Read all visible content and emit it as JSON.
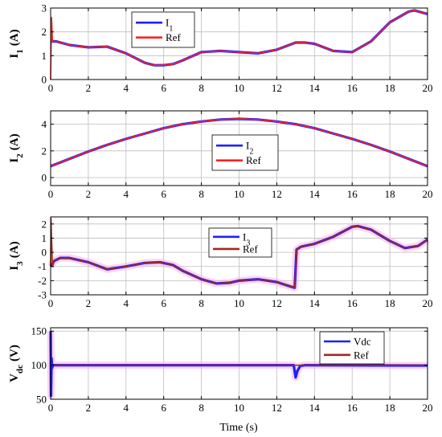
{
  "colors": {
    "I1": "#1f1fff",
    "Ref_red": "#ff2020",
    "I2": "#1f1fff",
    "I3": "#1f1fff",
    "Ref_dark": "#a52a1a",
    "Vdc": "#1f1fff",
    "grid": "#bdbdbd",
    "noise": "#ffb0e8"
  },
  "xlabel": "Time (s)",
  "chart_data": [
    {
      "type": "line",
      "ylabel_main": "I",
      "ylabel_sub": "1",
      "ylabel_unit": "(A)",
      "xlim": [
        0,
        20
      ],
      "ylim": [
        0,
        3
      ],
      "xticks": [
        0,
        2,
        4,
        6,
        8,
        10,
        12,
        14,
        16,
        18,
        20
      ],
      "yticks": [
        0,
        1,
        2,
        3
      ],
      "grid": true,
      "legend": [
        {
          "main": "I",
          "sub": "1",
          "color_key": "I1"
        },
        {
          "main": "Ref",
          "sub": "",
          "color_key": "Ref_red"
        }
      ],
      "series": [
        {
          "name": "I1",
          "color_key": "I1",
          "x": [
            0,
            0.3,
            1,
            2,
            3,
            4,
            5,
            5.5,
            6,
            6.5,
            7,
            8,
            9,
            10,
            11,
            12,
            13,
            13.5,
            14,
            15,
            16,
            17,
            18,
            19,
            19.3,
            20
          ],
          "y": [
            1.6,
            1.6,
            1.45,
            1.35,
            1.38,
            1.1,
            0.7,
            0.6,
            0.6,
            0.65,
            0.8,
            1.15,
            1.2,
            1.15,
            1.1,
            1.25,
            1.55,
            1.55,
            1.5,
            1.2,
            1.15,
            1.6,
            2.4,
            2.85,
            2.9,
            2.75
          ]
        },
        {
          "name": "Ref",
          "color_key": "Ref_red",
          "x": [
            0,
            0.05,
            0.1,
            0.3,
            1,
            2,
            3,
            4,
            5,
            5.5,
            6,
            6.5,
            7,
            8,
            9,
            10,
            11,
            12,
            13,
            13.5,
            14,
            15,
            16,
            17,
            18,
            19,
            19.3,
            20
          ],
          "y": [
            0,
            2.6,
            1.6,
            1.6,
            1.45,
            1.35,
            1.38,
            1.1,
            0.7,
            0.6,
            0.6,
            0.65,
            0.8,
            1.15,
            1.2,
            1.15,
            1.1,
            1.25,
            1.55,
            1.55,
            1.5,
            1.2,
            1.15,
            1.6,
            2.4,
            2.85,
            2.9,
            2.75
          ]
        }
      ]
    },
    {
      "type": "line",
      "ylabel_main": "I",
      "ylabel_sub": "2",
      "ylabel_unit": "(A)",
      "xlim": [
        0,
        20
      ],
      "ylim": [
        -0.6,
        5
      ],
      "xticks": [
        0,
        2,
        4,
        6,
        8,
        10,
        12,
        14,
        16,
        18,
        20
      ],
      "yticks": [
        0,
        2,
        4
      ],
      "grid": true,
      "legend": [
        {
          "main": "I",
          "sub": "2",
          "color_key": "I2"
        },
        {
          "main": "Ref",
          "sub": "",
          "color_key": "Ref_red"
        }
      ],
      "series": [
        {
          "name": "I2",
          "color_key": "I2",
          "x": [
            0,
            1,
            2,
            3,
            4,
            5,
            6,
            7,
            8,
            9,
            10,
            11,
            12,
            13,
            14,
            15,
            16,
            17,
            18,
            19,
            20
          ],
          "y": [
            0.85,
            1.4,
            1.95,
            2.45,
            2.9,
            3.3,
            3.7,
            4.0,
            4.2,
            4.35,
            4.4,
            4.35,
            4.2,
            4.0,
            3.7,
            3.3,
            2.9,
            2.45,
            1.95,
            1.4,
            0.85
          ]
        },
        {
          "name": "Ref",
          "color_key": "Ref_red",
          "x": [
            0,
            1,
            2,
            3,
            4,
            5,
            6,
            7,
            8,
            9,
            10,
            11,
            12,
            13,
            14,
            15,
            16,
            17,
            18,
            19,
            20
          ],
          "y": [
            0.85,
            1.4,
            1.95,
            2.45,
            2.9,
            3.3,
            3.7,
            4.0,
            4.2,
            4.35,
            4.4,
            4.35,
            4.2,
            4.0,
            3.7,
            3.3,
            2.9,
            2.45,
            1.95,
            1.4,
            0.85
          ]
        }
      ]
    },
    {
      "type": "line",
      "ylabel_main": "I",
      "ylabel_sub": "3",
      "ylabel_unit": "(A)",
      "xlim": [
        0,
        20
      ],
      "ylim": [
        -3,
        2.5
      ],
      "xticks": [
        0,
        2,
        4,
        6,
        8,
        10,
        12,
        14,
        16,
        18,
        20
      ],
      "yticks": [
        -3,
        -2,
        -1,
        0,
        1,
        2
      ],
      "grid": true,
      "legend": [
        {
          "main": "I",
          "sub": "3",
          "color_key": "I3"
        },
        {
          "main": "Ref",
          "sub": "",
          "color_key": "Ref_dark"
        }
      ],
      "series": [
        {
          "name": "I3",
          "color_key": "I3",
          "x": [
            0,
            0.2,
            0.5,
            1,
            2,
            3,
            4,
            5,
            5.8,
            6.5,
            7,
            8,
            8.8,
            9.5,
            10,
            11,
            12,
            12.7,
            12.95,
            13.05,
            13.3,
            14,
            15,
            16,
            16.3,
            17,
            18,
            18.8,
            19.5,
            20
          ],
          "y": [
            -1.0,
            -0.6,
            -0.4,
            -0.4,
            -0.7,
            -1.2,
            -1.0,
            -0.75,
            -0.7,
            -0.9,
            -1.3,
            -1.9,
            -2.2,
            -2.15,
            -2.0,
            -1.9,
            -2.1,
            -2.4,
            -2.5,
            0.2,
            0.4,
            0.6,
            1.1,
            1.8,
            1.85,
            1.6,
            0.8,
            0.3,
            0.45,
            0.9
          ]
        },
        {
          "name": "Ref",
          "color_key": "Ref_dark",
          "x": [
            0,
            0.02,
            0.1,
            0.2,
            0.5,
            1,
            2,
            3,
            4,
            5,
            5.8,
            6.5,
            7,
            8,
            8.8,
            9.5,
            10,
            11,
            12,
            12.7,
            12.95,
            13.05,
            13.3,
            14,
            15,
            16,
            16.3,
            17,
            18,
            18.8,
            19.5,
            20
          ],
          "y": [
            -1.0,
            2.4,
            -1.0,
            -0.6,
            -0.4,
            -0.4,
            -0.7,
            -1.2,
            -1.0,
            -0.75,
            -0.7,
            -0.9,
            -1.3,
            -1.9,
            -2.2,
            -2.15,
            -2.0,
            -1.9,
            -2.1,
            -2.4,
            -2.5,
            0.2,
            0.4,
            0.6,
            1.1,
            1.8,
            1.85,
            1.6,
            0.8,
            0.3,
            0.45,
            0.9
          ]
        }
      ]
    },
    {
      "type": "line",
      "ylabel_main": "V",
      "ylabel_sub": "dc",
      "ylabel_unit": "(V)",
      "xlim": [
        0,
        20
      ],
      "ylim": [
        50,
        155
      ],
      "xticks": [
        0,
        2,
        4,
        6,
        8,
        10,
        12,
        14,
        16,
        18,
        20
      ],
      "yticks": [
        50,
        100,
        150
      ],
      "grid": true,
      "legend": [
        {
          "main": "Vdc",
          "sub": "",
          "color_key": "Vdc"
        },
        {
          "main": "Ref",
          "sub": "",
          "color_key": "Ref_dark"
        }
      ],
      "series": [
        {
          "name": "Vdc",
          "color_key": "Vdc",
          "x": [
            0,
            0.02,
            0.05,
            0.08,
            0.12,
            0.3,
            1,
            12.9,
            13.0,
            13.1,
            13.25,
            13.5,
            20
          ],
          "y": [
            150,
            55,
            110,
            96,
            100,
            100,
            100,
            100,
            82,
            92,
            99,
            100,
            99.5
          ]
        },
        {
          "name": "Ref",
          "color_key": "Ref_dark",
          "x": [
            0,
            20
          ],
          "y": [
            100,
            100
          ]
        }
      ]
    }
  ]
}
